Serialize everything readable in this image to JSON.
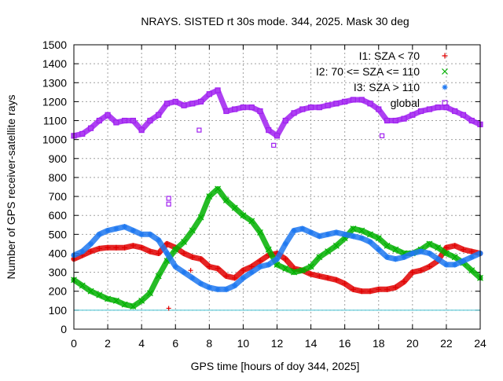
{
  "chart_data": {
    "type": "scatter",
    "title": "NRAYS. SISTED rt 30s mode. 344, 2025. Mask 30 deg",
    "xlabel": "GPS time [hours of doy 344, 2025]",
    "ylabel": "Number of GPS receiver-satellite rays",
    "xlim": [
      0,
      24
    ],
    "ylim": [
      0,
      1500
    ],
    "xticks": [
      0,
      2,
      4,
      6,
      8,
      10,
      12,
      14,
      16,
      18,
      20,
      22,
      24
    ],
    "yticks": [
      0,
      100,
      200,
      300,
      400,
      500,
      600,
      700,
      800,
      900,
      1000,
      1100,
      1200,
      1300,
      1400,
      1500
    ],
    "grid": true,
    "legend_position": "top-right",
    "reference_line": {
      "y": 100,
      "color": "#40c0d0"
    },
    "series": [
      {
        "name": "I1: SZA < 70",
        "marker": "+",
        "color": "#e00000",
        "x": [
          0,
          0.5,
          1,
          1.5,
          2,
          2.5,
          3,
          3.5,
          4,
          4.5,
          5,
          5.5,
          6,
          6.5,
          7,
          7.5,
          8,
          8.5,
          9,
          9.5,
          10,
          10.5,
          11,
          11.5,
          12,
          12.5,
          13,
          13.5,
          14,
          14.5,
          15,
          15.5,
          16,
          16.5,
          17,
          17.5,
          18,
          18.5,
          19,
          19.5,
          20,
          20.5,
          21,
          21.5,
          22,
          22.5,
          23,
          23.5,
          24
        ],
        "y": [
          370,
          390,
          410,
          425,
          430,
          430,
          430,
          440,
          430,
          410,
          400,
          450,
          430,
          400,
          380,
          370,
          330,
          320,
          280,
          270,
          310,
          330,
          360,
          390,
          400,
          370,
          320,
          310,
          290,
          280,
          270,
          260,
          240,
          210,
          200,
          200,
          210,
          210,
          220,
          250,
          300,
          310,
          330,
          360,
          430,
          440,
          420,
          410,
          400
        ]
      },
      {
        "name": "I2: 70 <= SZA <= 110",
        "marker": "x",
        "color": "#00b000",
        "x": [
          0,
          0.5,
          1,
          1.5,
          2,
          2.5,
          3,
          3.5,
          4,
          4.5,
          5,
          5.5,
          6,
          6.5,
          7,
          7.5,
          8,
          8.5,
          9,
          9.5,
          10,
          10.5,
          11,
          11.5,
          12,
          12.5,
          13,
          13.5,
          14,
          14.5,
          15,
          15.5,
          16,
          16.5,
          17,
          17.5,
          18,
          18.5,
          19,
          19.5,
          20,
          20.5,
          21,
          21.5,
          22,
          22.5,
          23,
          23.5,
          24
        ],
        "y": [
          260,
          230,
          200,
          180,
          160,
          150,
          130,
          120,
          150,
          190,
          280,
          360,
          420,
          460,
          520,
          590,
          700,
          740,
          680,
          640,
          600,
          570,
          510,
          420,
          340,
          320,
          300,
          310,
          330,
          380,
          410,
          440,
          480,
          530,
          520,
          500,
          480,
          440,
          420,
          400,
          400,
          420,
          450,
          430,
          400,
          380,
          350,
          310,
          270
        ]
      },
      {
        "name": "I3: SZA > 110",
        "marker": "*",
        "color": "#1e78f0",
        "x": [
          0,
          0.5,
          1,
          1.5,
          2,
          2.5,
          3,
          3.5,
          4,
          4.5,
          5,
          5.5,
          6,
          6.5,
          7,
          7.5,
          8,
          8.5,
          9,
          9.5,
          10,
          10.5,
          11,
          11.5,
          12,
          12.5,
          13,
          13.5,
          14,
          14.5,
          15,
          15.5,
          16,
          16.5,
          17,
          17.5,
          18,
          18.5,
          19,
          19.5,
          20,
          20.5,
          21,
          21.5,
          22,
          22.5,
          23,
          23.5,
          24
        ],
        "y": [
          390,
          410,
          450,
          500,
          520,
          530,
          540,
          520,
          500,
          500,
          470,
          400,
          330,
          300,
          270,
          240,
          220,
          210,
          210,
          230,
          270,
          300,
          330,
          340,
          370,
          450,
          520,
          530,
          510,
          490,
          500,
          510,
          500,
          490,
          480,
          460,
          420,
          380,
          370,
          380,
          400,
          410,
          400,
          370,
          340,
          340,
          360,
          380,
          400
        ]
      },
      {
        "name": "global",
        "marker": "square",
        "color": "#a020f0",
        "x": [
          0,
          0.5,
          1,
          1.5,
          2,
          2.5,
          3,
          3.5,
          4,
          4.5,
          5,
          5.5,
          6,
          6.5,
          7,
          7.5,
          8,
          8.5,
          9,
          9.5,
          10,
          10.5,
          11,
          11.5,
          12,
          12.5,
          13,
          13.5,
          14,
          14.5,
          15,
          15.5,
          16,
          16.5,
          17,
          17.5,
          18,
          18.5,
          19,
          19.5,
          20,
          20.5,
          21,
          21.5,
          22,
          22.5,
          23,
          23.5,
          24
        ],
        "y": [
          1020,
          1030,
          1060,
          1100,
          1130,
          1090,
          1100,
          1100,
          1050,
          1100,
          1130,
          1190,
          1200,
          1180,
          1190,
          1200,
          1240,
          1260,
          1150,
          1160,
          1170,
          1170,
          1150,
          1050,
          1020,
          1100,
          1140,
          1160,
          1170,
          1170,
          1180,
          1190,
          1200,
          1210,
          1210,
          1190,
          1160,
          1100,
          1100,
          1110,
          1130,
          1150,
          1160,
          1170,
          1170,
          1150,
          1130,
          1100,
          1080
        ]
      }
    ],
    "outliers": [
      {
        "series": "I1: SZA < 70",
        "x": 5.6,
        "y": 110
      },
      {
        "series": "I1: SZA < 70",
        "x": 6.9,
        "y": 310
      },
      {
        "series": "global",
        "x": 5.6,
        "y": 690
      },
      {
        "series": "global",
        "x": 5.6,
        "y": 660
      },
      {
        "series": "global",
        "x": 7.4,
        "y": 1050
      },
      {
        "series": "global",
        "x": 11.8,
        "y": 970
      },
      {
        "series": "global",
        "x": 18.2,
        "y": 1020
      }
    ]
  }
}
